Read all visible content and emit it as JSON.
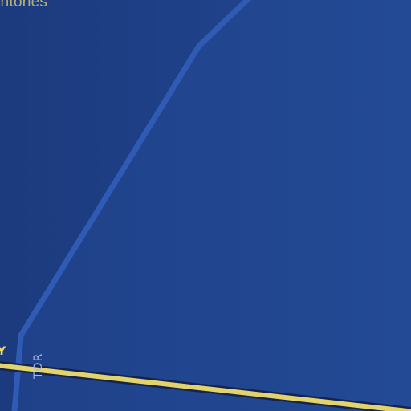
{
  "map": {
    "labels": {
      "territory": "rritories",
      "road_fragment_y": "Y",
      "road_fragment_tor": "TOR"
    },
    "colors": {
      "water": "#1d3c82",
      "coast": "#2f5bb5",
      "road": "#e2d36a",
      "road_casing": "#14244f",
      "territory_text": "#b8b07a"
    }
  }
}
